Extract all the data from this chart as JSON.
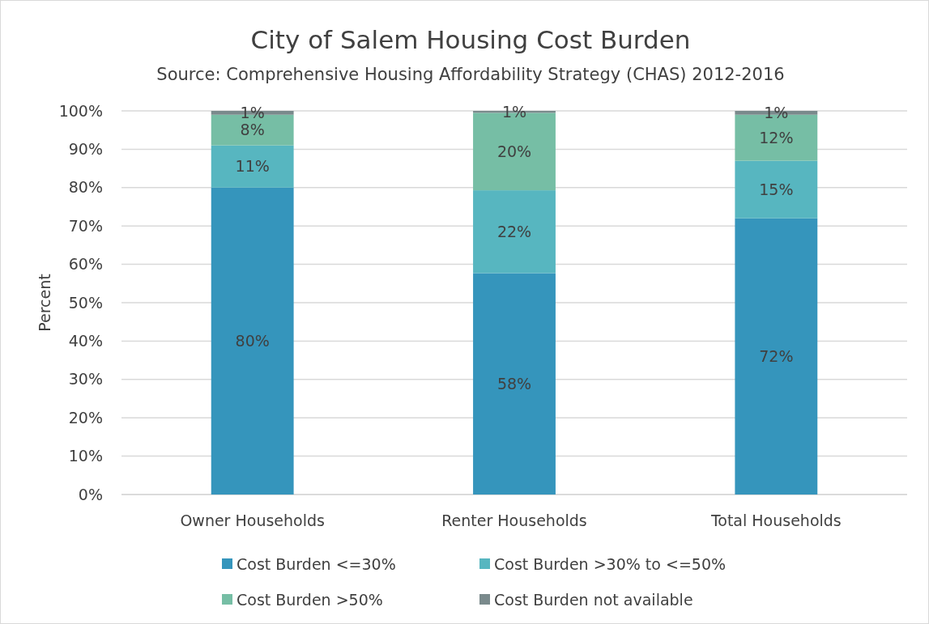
{
  "chart_data": {
    "type": "bar",
    "stacked": true,
    "title": "City of Salem Housing Cost Burden",
    "subtitle": "Source:  Comprehensive Housing Affordability Strategy (CHAS) 2012-2016",
    "ylabel": "Percent",
    "categories": [
      "Owner Households",
      "Renter Households",
      "Total Households"
    ],
    "series": [
      {
        "name": "Cost Burden <=30%",
        "color": "#3595bc",
        "values": [
          80,
          57.7,
          72
        ],
        "value_labels": [
          "80%",
          "58%",
          "72%"
        ]
      },
      {
        "name": "Cost Burden >30% to <=50%",
        "color": "#57b6c0",
        "values": [
          11,
          21.6,
          15
        ],
        "value_labels": [
          "11%",
          "22%",
          "15%"
        ]
      },
      {
        "name": "Cost Burden >50%",
        "color": "#76bea5",
        "values": [
          8,
          20.2,
          12
        ],
        "value_labels": [
          "8%",
          "20%",
          "12%"
        ]
      },
      {
        "name": "Cost Burden not available",
        "color": "#7a8a8c",
        "values": [
          1,
          0.5,
          1
        ],
        "value_labels": [
          "1%",
          "1%",
          "1%"
        ]
      }
    ],
    "ylim": [
      0,
      100
    ],
    "yticks": [
      {
        "value": 0,
        "label": "0%"
      },
      {
        "value": 10,
        "label": "10%"
      },
      {
        "value": 20,
        "label": "20%"
      },
      {
        "value": 30,
        "label": "30%"
      },
      {
        "value": 40,
        "label": "40%"
      },
      {
        "value": 50,
        "label": "50%"
      },
      {
        "value": 60,
        "label": "60%"
      },
      {
        "value": 70,
        "label": "70%"
      },
      {
        "value": 80,
        "label": "80%"
      },
      {
        "value": 90,
        "label": "90%"
      },
      {
        "value": 100,
        "label": "100%"
      }
    ],
    "grid": "y",
    "legend": "bottom"
  }
}
